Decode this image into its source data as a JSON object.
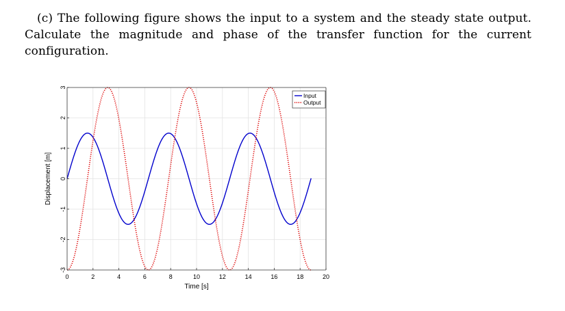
{
  "question": {
    "label": "(c)",
    "text": "The following figure shows the input to a system and the steady state output. Calculate the magnitude and phase of the transfer function for the current configuration."
  },
  "chart_data": {
    "type": "line",
    "title": "",
    "xlabel": "Time [s]",
    "ylabel": "Displacement [m]",
    "xlim": [
      0,
      20
    ],
    "ylim": [
      -3,
      3
    ],
    "xticks": [
      0,
      2,
      4,
      6,
      8,
      10,
      12,
      14,
      16,
      18,
      20
    ],
    "yticks": [
      -3,
      -2,
      -1,
      0,
      1,
      2,
      3
    ],
    "grid": true,
    "legend_position": "top-right",
    "series": [
      {
        "name": "Input",
        "color": "#0000cc",
        "style": "solid",
        "amplitude": 1.5,
        "period": 6.28,
        "phase_deg": 0,
        "t_start": 0,
        "t_end": 18.85
      },
      {
        "name": "Output",
        "color": "#dd0000",
        "style": "dotted",
        "amplitude": 3,
        "period": 6.28,
        "phase_deg": -90,
        "t_start": 0,
        "t_end": 18.85
      }
    ]
  }
}
